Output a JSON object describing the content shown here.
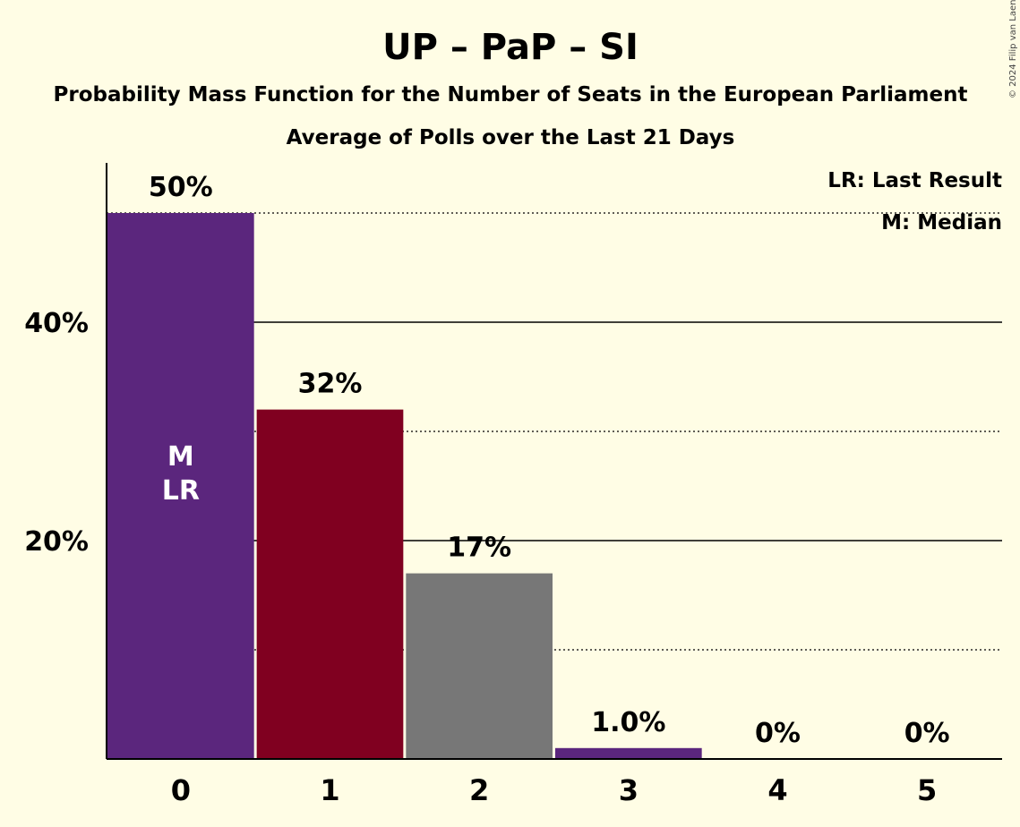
{
  "copyright": "© 2024 Filip van Laenen",
  "chart_data": {
    "type": "bar",
    "title": "UP – PaP – SI",
    "subtitle": "Probability Mass Function for the Number of Seats in the European Parliament",
    "subtitle2": "Average of Polls over the Last 21 Days",
    "categories": [
      "0",
      "1",
      "2",
      "3",
      "4",
      "5"
    ],
    "values": [
      50,
      32,
      17,
      1.0,
      0,
      0
    ],
    "value_labels": [
      "50%",
      "32%",
      "17%",
      "1.0%",
      "0%",
      "0%"
    ],
    "bar_colors": [
      "#5B267D",
      "#800020",
      "#777777",
      "#5B267D",
      "#5B267D",
      "#5B267D"
    ],
    "ylim": [
      0,
      54.5
    ],
    "yticks": [
      {
        "value": 20,
        "label": "20%",
        "style": "solid"
      },
      {
        "value": 40,
        "label": "40%",
        "style": "solid"
      }
    ],
    "minor_gridlines": [
      10,
      30,
      50
    ],
    "bar_annotations": [
      {
        "category": "0",
        "lines": [
          "M",
          "LR"
        ]
      }
    ],
    "legend": [
      "LR: Last Result",
      "M: Median"
    ],
    "legend_position": "top-right",
    "xlabel": "",
    "ylabel": ""
  }
}
